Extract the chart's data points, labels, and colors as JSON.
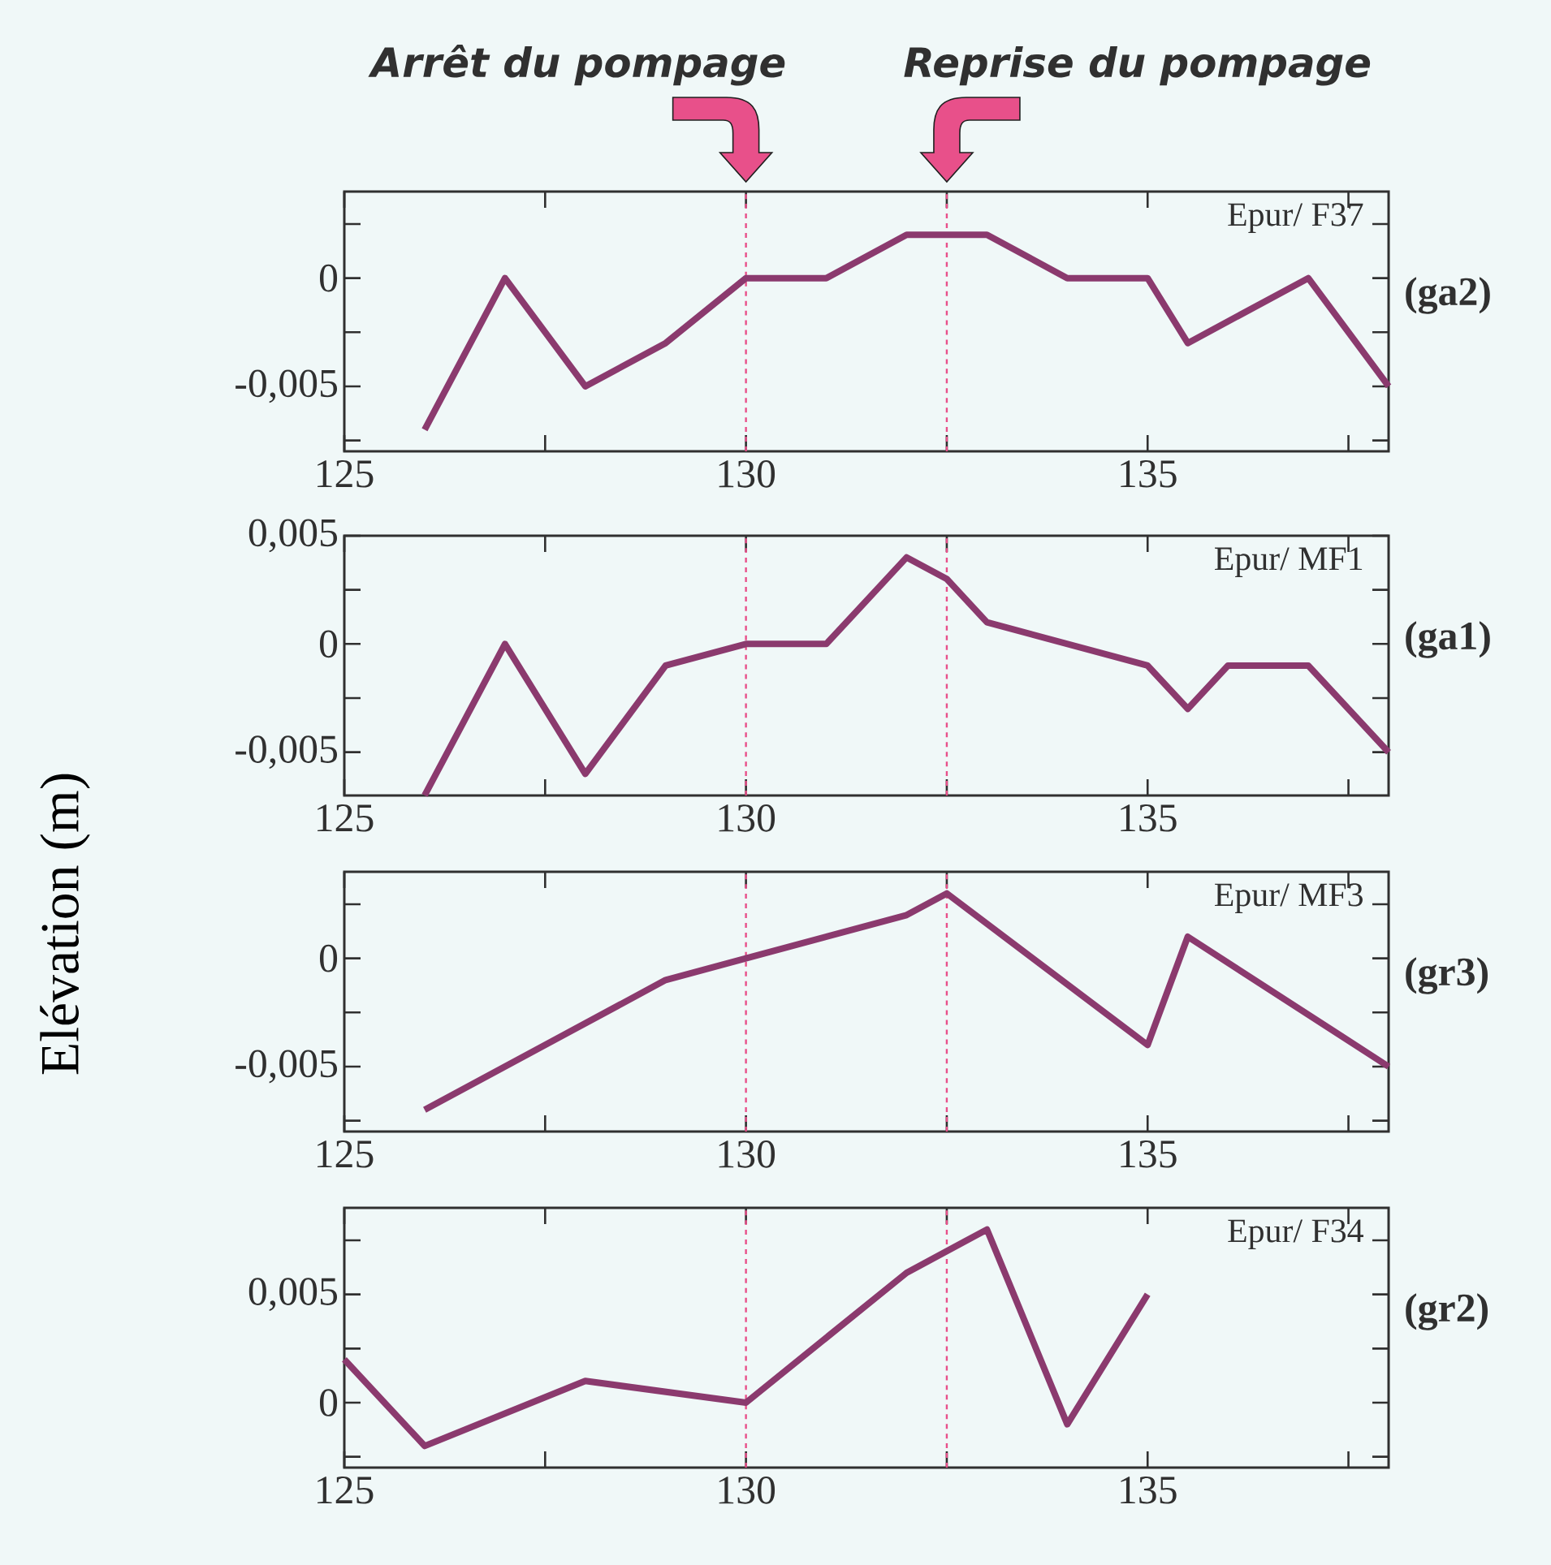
{
  "chart_data": [
    {
      "type": "line",
      "title": "(ga2)",
      "annotations": [
        "Epur/ F37"
      ],
      "color": "#8b3a6e",
      "line_style": "solid",
      "x": [
        126,
        127,
        128,
        129,
        130,
        131,
        132,
        133,
        134,
        135,
        135.5,
        137,
        138
      ],
      "values": [
        -0.007,
        0,
        -0.005,
        -0.003,
        0,
        0,
        0.002,
        0.002,
        0,
        0,
        -0.003,
        0,
        -0.005
      ],
      "xlim": [
        125,
        138
      ],
      "ylim": [
        -0.008,
        0.004
      ],
      "xticks": [
        125,
        {
          "value": 127.5,
          "label": null
        },
        130,
        {
          "value": 132.5,
          "label": null
        },
        135,
        {
          "value": 137.5,
          "label": null
        }
      ],
      "yticks": [
        {
          "value": -0.0075,
          "label": null
        },
        {
          "value": -0.005,
          "label": "-0,005"
        },
        {
          "value": -0.0025,
          "label": null
        },
        0,
        {
          "value": 0.0025,
          "label": null
        }
      ],
      "ref_lines": [
        {
          "axis": "x",
          "value": 130,
          "label": "Arrêt du pompage",
          "color": "#e8508a",
          "line_style": "dashed"
        },
        {
          "axis": "x",
          "value": 132.5,
          "label": "Reprise du pompage",
          "color": "#e8508a",
          "line_style": "dashed"
        }
      ]
    },
    {
      "type": "line",
      "title": "(ga1)",
      "annotations": [
        "Epur/ MF1"
      ],
      "color": "#8b3a6e",
      "line_style": "solid",
      "x": [
        126,
        127,
        128,
        129,
        130,
        131,
        132,
        132.5,
        133,
        135,
        135.5,
        136,
        137,
        138
      ],
      "values": [
        -0.007,
        0,
        -0.006,
        -0.001,
        0,
        0,
        0.004,
        0.003,
        0.001,
        -0.001,
        -0.003,
        -0.001,
        -0.001,
        -0.005
      ],
      "xlim": [
        125,
        138
      ],
      "ylim": [
        -0.007,
        0.005
      ],
      "xticks": [
        125,
        {
          "value": 127.5,
          "label": null
        },
        130,
        {
          "value": 132.5,
          "label": null
        },
        135,
        {
          "value": 137.5,
          "label": null
        }
      ],
      "yticks": [
        {
          "value": -0.005,
          "label": "-0,005"
        },
        {
          "value": -0.0025,
          "label": null
        },
        0,
        {
          "value": 0.0025,
          "label": null
        },
        {
          "value": 0.005,
          "label": "0,005"
        }
      ],
      "ref_lines": [
        {
          "axis": "x",
          "value": 130,
          "color": "#e8508a",
          "line_style": "dashed"
        },
        {
          "axis": "x",
          "value": 132.5,
          "color": "#e8508a",
          "line_style": "dashed"
        }
      ]
    },
    {
      "type": "line",
      "title": "(gr3)",
      "annotations": [
        "Epur/ MF3"
      ],
      "ylabel": "Elévation (m)",
      "color": "#8b3a6e",
      "line_style": "solid",
      "x": [
        126,
        129,
        130,
        132,
        132.5,
        135,
        135.5,
        138
      ],
      "values": [
        -0.007,
        -0.001,
        0,
        0.002,
        0.003,
        -0.004,
        0.001,
        -0.005
      ],
      "xlim": [
        125,
        138
      ],
      "ylim": [
        -0.008,
        0.004
      ],
      "xticks": [
        125,
        {
          "value": 127.5,
          "label": null
        },
        130,
        {
          "value": 132.5,
          "label": null
        },
        135,
        {
          "value": 137.5,
          "label": null
        }
      ],
      "yticks": [
        {
          "value": -0.0075,
          "label": null
        },
        {
          "value": -0.005,
          "label": "-0,005"
        },
        {
          "value": -0.0025,
          "label": null
        },
        0,
        {
          "value": 0.0025,
          "label": null
        }
      ],
      "ref_lines": [
        {
          "axis": "x",
          "value": 130,
          "color": "#e8508a",
          "line_style": "dashed"
        },
        {
          "axis": "x",
          "value": 132.5,
          "color": "#e8508a",
          "line_style": "dashed"
        }
      ]
    },
    {
      "type": "line",
      "title": "(gr2)",
      "annotations": [
        "Epur/ F34"
      ],
      "color": "#8b3a6e",
      "line_style": "solid",
      "x": [
        125,
        126,
        128,
        130,
        132,
        133,
        134,
        135
      ],
      "values": [
        0.002,
        -0.002,
        0.001,
        0,
        0.006,
        0.008,
        -0.001,
        0.005
      ],
      "xlim": [
        125,
        138
      ],
      "ylim": [
        -0.003,
        0.009
      ],
      "xticks": [
        125,
        {
          "value": 127.5,
          "label": null
        },
        130,
        {
          "value": 132.5,
          "label": null
        },
        135,
        {
          "value": 137.5,
          "label": null
        }
      ],
      "yticks": [
        {
          "value": -0.0025,
          "label": null
        },
        0,
        {
          "value": 0.0025,
          "label": null
        },
        {
          "value": 0.005,
          "label": "0,005"
        },
        {
          "value": 0.0075,
          "label": null
        }
      ],
      "ref_lines": [
        {
          "axis": "x",
          "value": 130,
          "color": "#e8508a",
          "line_style": "dashed"
        },
        {
          "axis": "x",
          "value": 132.5,
          "color": "#e8508a",
          "line_style": "dashed"
        }
      ]
    }
  ]
}
